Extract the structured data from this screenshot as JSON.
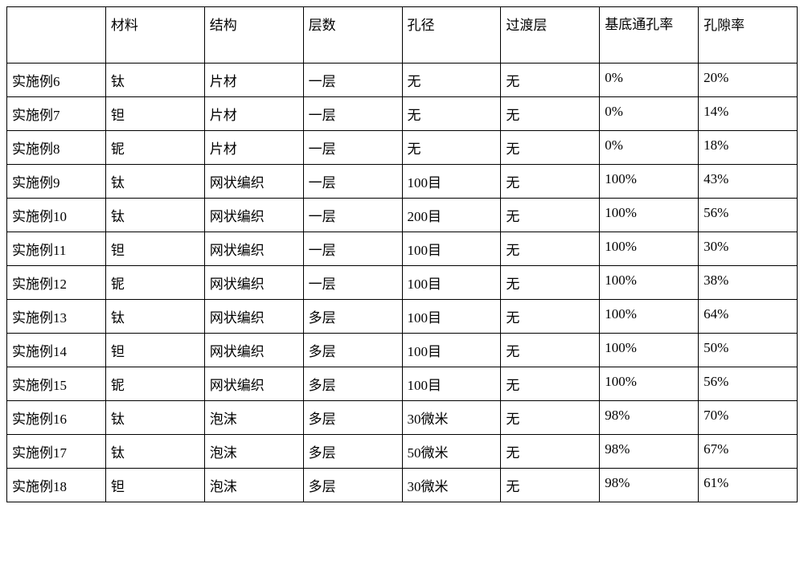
{
  "table": {
    "columns": [
      "",
      "材料",
      "结构",
      "层数",
      "孔径",
      "过渡层",
      "基底通孔率",
      "孔隙率"
    ],
    "column_widths_pct": [
      12.5,
      12.5,
      12.5,
      12.5,
      12.5,
      12.5,
      12.5,
      12.5
    ],
    "header_fontsize_pt": 13,
    "cell_fontsize_pt": 13,
    "border_color": "#000000",
    "text_color": "#000000",
    "background_color": "#ffffff",
    "font_family": "SimSun",
    "rows": [
      [
        "实施例6",
        "钛",
        "片材",
        "一层",
        "无",
        "无",
        "0%",
        "20%"
      ],
      [
        "实施例7",
        "钽",
        "片材",
        "一层",
        "无",
        "无",
        "0%",
        "14%"
      ],
      [
        "实施例8",
        "铌",
        "片材",
        "一层",
        "无",
        "无",
        "0%",
        "18%"
      ],
      [
        "实施例9",
        "钛",
        "网状编织",
        "一层",
        "100目",
        "无",
        "100%",
        "43%"
      ],
      [
        "实施例10",
        "钛",
        "网状编织",
        "一层",
        "200目",
        "无",
        "100%",
        "56%"
      ],
      [
        "实施例11",
        "钽",
        "网状编织",
        "一层",
        "100目",
        "无",
        "100%",
        "30%"
      ],
      [
        "实施例12",
        "铌",
        "网状编织",
        "一层",
        "100目",
        "无",
        "100%",
        "38%"
      ],
      [
        "实施例13",
        "钛",
        "网状编织",
        "多层",
        "100目",
        "无",
        "100%",
        "64%"
      ],
      [
        "实施例14",
        "钽",
        "网状编织",
        "多层",
        "100目",
        "无",
        "100%",
        "50%"
      ],
      [
        "实施例15",
        "铌",
        "网状编织",
        "多层",
        "100目",
        "无",
        "100%",
        "56%"
      ],
      [
        "实施例16",
        "钛",
        "泡沫",
        "多层",
        "30微米",
        "无",
        "98%",
        "70%"
      ],
      [
        "实施例17",
        "钛",
        "泡沫",
        "多层",
        "50微米",
        "无",
        "98%",
        "67%"
      ],
      [
        "实施例18",
        "钽",
        "泡沫",
        "多层",
        "30微米",
        "无",
        "98%",
        "61%"
      ]
    ]
  }
}
